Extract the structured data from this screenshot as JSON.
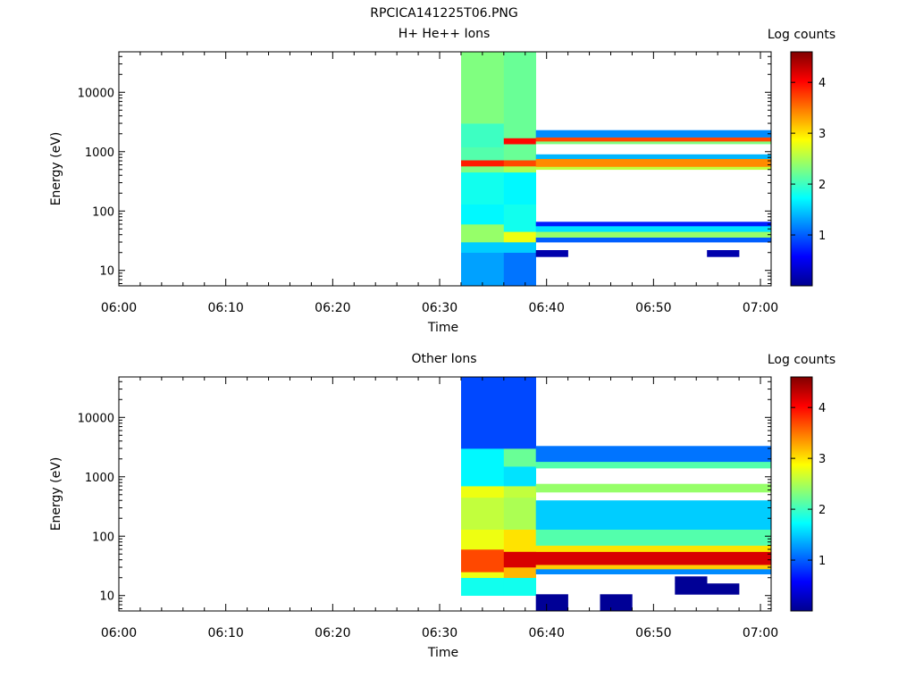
{
  "file_title": "RPCICA141225T06.PNG",
  "panels": [
    {
      "title": "H+ He++ Ions",
      "ylabel": "Energy (eV)",
      "xlabel": "Time",
      "colorbar_title": "Log counts"
    },
    {
      "title": "Other Ions",
      "ylabel": "Energy (eV)",
      "xlabel": "Time",
      "colorbar_title": "Log counts"
    }
  ],
  "x_ticks": [
    "06:00",
    "06:10",
    "06:20",
    "06:30",
    "06:40",
    "06:50",
    "07:00"
  ],
  "y_ticks": [
    "10",
    "100",
    "1000",
    "10000"
  ],
  "colorbar_ticks": [
    "1",
    "2",
    "3",
    "4"
  ],
  "chart_data": [
    {
      "type": "heatmap",
      "title": "H+ He++ Ions",
      "xlabel": "Time",
      "ylabel": "Energy (eV)",
      "y_scale": "log",
      "x_range": [
        "06:00",
        "07:01"
      ],
      "y_range": [
        5.5,
        48000
      ],
      "color_scale": "jet",
      "color_range": [
        0,
        4.6
      ],
      "colorbar_label": "Log counts",
      "time_bins": [
        "06:32",
        "06:36",
        "06:39",
        "06:42",
        "06:45",
        "06:48",
        "06:52",
        "06:55",
        "06:58",
        "07:01"
      ],
      "cells": [
        {
          "t": [
            0,
            1
          ],
          "e": [
            5.5,
            20
          ],
          "v": 1.3
        },
        {
          "t": [
            0,
            1
          ],
          "e": [
            20,
            30
          ],
          "v": 1.5
        },
        {
          "t": [
            0,
            1
          ],
          "e": [
            30,
            60
          ],
          "v": 2.4
        },
        {
          "t": [
            0,
            1
          ],
          "e": [
            60,
            130
          ],
          "v": 1.7
        },
        {
          "t": [
            0,
            1
          ],
          "e": [
            130,
            450
          ],
          "v": 1.8
        },
        {
          "t": [
            0,
            1
          ],
          "e": [
            450,
            570
          ],
          "v": 2.3
        },
        {
          "t": [
            0,
            1
          ],
          "e": [
            570,
            720
          ],
          "v": 3.9
        },
        {
          "t": [
            0,
            1
          ],
          "e": [
            720,
            1200
          ],
          "v": 2.1
        },
        {
          "t": [
            0,
            1
          ],
          "e": [
            1200,
            3000
          ],
          "v": 2.0
        },
        {
          "t": [
            0,
            1
          ],
          "e": [
            3000,
            48000
          ],
          "v": 2.3
        },
        {
          "t": [
            1,
            2
          ],
          "e": [
            5.5,
            20
          ],
          "v": 1.1
        },
        {
          "t": [
            1,
            2
          ],
          "e": [
            20,
            30
          ],
          "v": 1.5
        },
        {
          "t": [
            1,
            2
          ],
          "e": [
            30,
            45
          ],
          "v": 2.8
        },
        {
          "t": [
            1,
            2
          ],
          "e": [
            45,
            130
          ],
          "v": 1.8
        },
        {
          "t": [
            1,
            2
          ],
          "e": [
            130,
            450
          ],
          "v": 1.7
        },
        {
          "t": [
            1,
            2
          ],
          "e": [
            450,
            570
          ],
          "v": 2.5
        },
        {
          "t": [
            1,
            2
          ],
          "e": [
            570,
            720
          ],
          "v": 3.7
        },
        {
          "t": [
            1,
            2
          ],
          "e": [
            720,
            1350
          ],
          "v": 2.2
        },
        {
          "t": [
            1,
            2
          ],
          "e": [
            1350,
            1700
          ],
          "v": 4.0
        },
        {
          "t": [
            1,
            2
          ],
          "e": [
            1700,
            48000
          ],
          "v": 2.2
        },
        {
          "t": [
            2,
            9
          ],
          "e": [
            30,
            36
          ],
          "v": 1.0
        },
        {
          "t": [
            2,
            9
          ],
          "e": [
            36,
            45
          ],
          "v": 2.4
        },
        {
          "t": [
            2,
            9
          ],
          "e": [
            45,
            56
          ],
          "v": 1.6
        },
        {
          "t": [
            2,
            9
          ],
          "e": [
            56,
            66
          ],
          "v": 0.7
        },
        {
          "t": [
            2,
            9
          ],
          "e": [
            500,
            560
          ],
          "v": 2.6
        },
        {
          "t": [
            2,
            9
          ],
          "e": [
            560,
            760
          ],
          "v": 3.4
        },
        {
          "t": [
            2,
            9
          ],
          "e": [
            760,
            900
          ],
          "v": 1.4
        },
        {
          "t": [
            2,
            9
          ],
          "e": [
            1350,
            1500
          ],
          "v": 2.3
        },
        {
          "t": [
            2,
            9
          ],
          "e": [
            1500,
            1750
          ],
          "v": 3.7
        },
        {
          "t": [
            2,
            9
          ],
          "e": [
            1750,
            2300
          ],
          "v": 1.2
        },
        {
          "t": [
            2,
            3
          ],
          "e": [
            17,
            22
          ],
          "v": 0.2
        },
        {
          "t": [
            7,
            8
          ],
          "e": [
            17,
            22
          ],
          "v": 0.2
        }
      ]
    },
    {
      "type": "heatmap",
      "title": "Other Ions",
      "xlabel": "Time",
      "ylabel": "Energy (eV)",
      "y_scale": "log",
      "x_range": [
        "06:00",
        "07:01"
      ],
      "y_range": [
        5.5,
        48000
      ],
      "color_scale": "jet",
      "color_range": [
        0,
        4.6
      ],
      "colorbar_label": "Log counts",
      "time_bins": [
        "06:32",
        "06:36",
        "06:39",
        "06:42",
        "06:45",
        "06:48",
        "06:52",
        "06:55",
        "06:58",
        "07:01"
      ],
      "cells": [
        {
          "t": [
            0,
            1
          ],
          "e": [
            10,
            20
          ],
          "v": 1.8
        },
        {
          "t": [
            0,
            1
          ],
          "e": [
            20,
            25
          ],
          "v": 2.8
        },
        {
          "t": [
            0,
            1
          ],
          "e": [
            25,
            60
          ],
          "v": 3.7
        },
        {
          "t": [
            0,
            1
          ],
          "e": [
            60,
            130
          ],
          "v": 2.8
        },
        {
          "t": [
            0,
            1
          ],
          "e": [
            130,
            450
          ],
          "v": 2.6
        },
        {
          "t": [
            0,
            1
          ],
          "e": [
            450,
            700
          ],
          "v": 2.8
        },
        {
          "t": [
            0,
            1
          ],
          "e": [
            700,
            3000
          ],
          "v": 1.7
        },
        {
          "t": [
            0,
            1
          ],
          "e": [
            3000,
            48000
          ],
          "v": 0.9
        },
        {
          "t": [
            1,
            2
          ],
          "e": [
            10,
            20
          ],
          "v": 1.8
        },
        {
          "t": [
            1,
            2
          ],
          "e": [
            20,
            30
          ],
          "v": 3.2
        },
        {
          "t": [
            1,
            2
          ],
          "e": [
            30,
            55
          ],
          "v": 4.2
        },
        {
          "t": [
            1,
            2
          ],
          "e": [
            55,
            130
          ],
          "v": 3.0
        },
        {
          "t": [
            1,
            2
          ],
          "e": [
            130,
            450
          ],
          "v": 2.5
        },
        {
          "t": [
            1,
            2
          ],
          "e": [
            450,
            700
          ],
          "v": 2.6
        },
        {
          "t": [
            1,
            2
          ],
          "e": [
            700,
            1500
          ],
          "v": 1.6
        },
        {
          "t": [
            1,
            2
          ],
          "e": [
            1500,
            3000
          ],
          "v": 2.2
        },
        {
          "t": [
            1,
            2
          ],
          "e": [
            3000,
            48000
          ],
          "v": 0.9
        },
        {
          "t": [
            2,
            9
          ],
          "e": [
            23,
            28
          ],
          "v": 1.2
        },
        {
          "t": [
            2,
            9
          ],
          "e": [
            28,
            33
          ],
          "v": 3.1
        },
        {
          "t": [
            2,
            9
          ],
          "e": [
            33,
            55
          ],
          "v": 4.2
        },
        {
          "t": [
            2,
            9
          ],
          "e": [
            55,
            70
          ],
          "v": 3.0
        },
        {
          "t": [
            2,
            9
          ],
          "e": [
            70,
            130
          ],
          "v": 2.1
        },
        {
          "t": [
            2,
            9
          ],
          "e": [
            130,
            400
          ],
          "v": 1.5
        },
        {
          "t": [
            2,
            9
          ],
          "e": [
            550,
            760
          ],
          "v": 2.4
        },
        {
          "t": [
            2,
            9
          ],
          "e": [
            1400,
            1800
          ],
          "v": 2.1
        },
        {
          "t": [
            2,
            9
          ],
          "e": [
            1800,
            3300
          ],
          "v": 1.1
        },
        {
          "t": [
            2,
            3
          ],
          "e": [
            5.5,
            10.5
          ],
          "v": 0.1
        },
        {
          "t": [
            4,
            5
          ],
          "e": [
            5.5,
            10.5
          ],
          "v": 0.1
        },
        {
          "t": [
            6,
            8
          ],
          "e": [
            10.5,
            16
          ],
          "v": 0.1
        },
        {
          "t": [
            6,
            7
          ],
          "e": [
            16,
            21
          ],
          "v": 0.1
        }
      ]
    }
  ]
}
